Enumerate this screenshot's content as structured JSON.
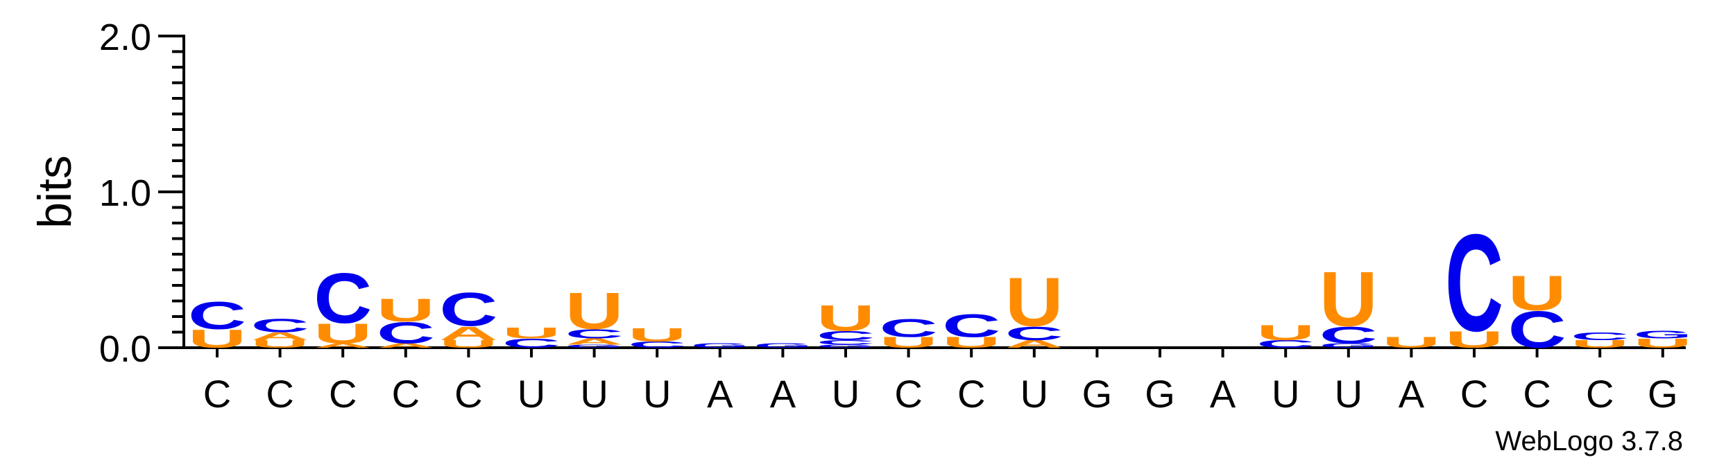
{
  "chart_data": {
    "type": "sequence_logo",
    "ylabel": "bits",
    "ylim": [
      0,
      2
    ],
    "yticks": [
      "0.0",
      "1.0",
      "2.0"
    ],
    "consensus": [
      "C",
      "C",
      "C",
      "C",
      "C",
      "U",
      "U",
      "U",
      "A",
      "A",
      "U",
      "C",
      "C",
      "U",
      "G",
      "G",
      "A",
      "U",
      "U",
      "A",
      "C",
      "C",
      "C",
      "G"
    ],
    "colors": {
      "C": "#0000ee",
      "U": "#ff8c00",
      "A": "#ff8c00",
      "G": "#0000ee"
    },
    "columns": [
      {
        "position": 1,
        "stack": [
          [
            "U",
            0.12
          ],
          [
            "C",
            0.18
          ]
        ]
      },
      {
        "position": 2,
        "stack": [
          [
            "U",
            0.05
          ],
          [
            "A",
            0.05
          ],
          [
            "C",
            0.09
          ]
        ]
      },
      {
        "position": 3,
        "stack": [
          [
            "A",
            0.03
          ],
          [
            "U",
            0.13
          ],
          [
            "C",
            0.33
          ]
        ]
      },
      {
        "position": 4,
        "stack": [
          [
            "A",
            0.03
          ],
          [
            "C",
            0.14
          ],
          [
            "U",
            0.15
          ]
        ]
      },
      {
        "position": 5,
        "stack": [
          [
            "U",
            0.05
          ],
          [
            "A",
            0.09
          ],
          [
            "C",
            0.22
          ]
        ]
      },
      {
        "position": 6,
        "stack": [
          [
            "C",
            0.06
          ],
          [
            "U",
            0.07
          ]
        ]
      },
      {
        "position": 7,
        "stack": [
          [
            "G",
            0.02
          ],
          [
            "A",
            0.04
          ],
          [
            "C",
            0.06
          ],
          [
            "U",
            0.24
          ]
        ]
      },
      {
        "position": 8,
        "stack": [
          [
            "C",
            0.04
          ],
          [
            "U",
            0.09
          ]
        ]
      },
      {
        "position": 9,
        "stack": [
          [
            "G",
            0.03
          ]
        ]
      },
      {
        "position": 10,
        "stack": [
          [
            "G",
            0.03
          ]
        ]
      },
      {
        "position": 11,
        "stack": [
          [
            "G",
            0.02
          ],
          [
            "C",
            0.03
          ],
          [
            "C",
            0.06
          ],
          [
            "U",
            0.17
          ]
        ]
      },
      {
        "position": 12,
        "stack": [
          [
            "U",
            0.07
          ],
          [
            "C",
            0.12
          ]
        ]
      },
      {
        "position": 13,
        "stack": [
          [
            "U",
            0.07
          ],
          [
            "C",
            0.15
          ]
        ]
      },
      {
        "position": 14,
        "stack": [
          [
            "A",
            0.05
          ],
          [
            "C",
            0.09
          ],
          [
            "U",
            0.32
          ]
        ]
      },
      {
        "position": 15,
        "stack": []
      },
      {
        "position": 16,
        "stack": []
      },
      {
        "position": 17,
        "stack": []
      },
      {
        "position": 18,
        "stack": [
          [
            "C",
            0.05
          ],
          [
            "U",
            0.1
          ]
        ]
      },
      {
        "position": 19,
        "stack": [
          [
            "G",
            0.03
          ],
          [
            "C",
            0.11
          ],
          [
            "U",
            0.36
          ]
        ]
      },
      {
        "position": 20,
        "stack": [
          [
            "U",
            0.07
          ]
        ]
      },
      {
        "position": 21,
        "stack": [
          [
            "U",
            0.11
          ],
          [
            "C",
            0.64
          ]
        ]
      },
      {
        "position": 22,
        "stack": [
          [
            "C",
            0.24
          ],
          [
            "U",
            0.23
          ]
        ]
      },
      {
        "position": 23,
        "stack": [
          [
            "U",
            0.05
          ],
          [
            "C",
            0.05
          ]
        ]
      },
      {
        "position": 24,
        "stack": [
          [
            "U",
            0.06
          ],
          [
            "G",
            0.05
          ]
        ]
      }
    ]
  },
  "credit": "WebLogo 3.7.8"
}
